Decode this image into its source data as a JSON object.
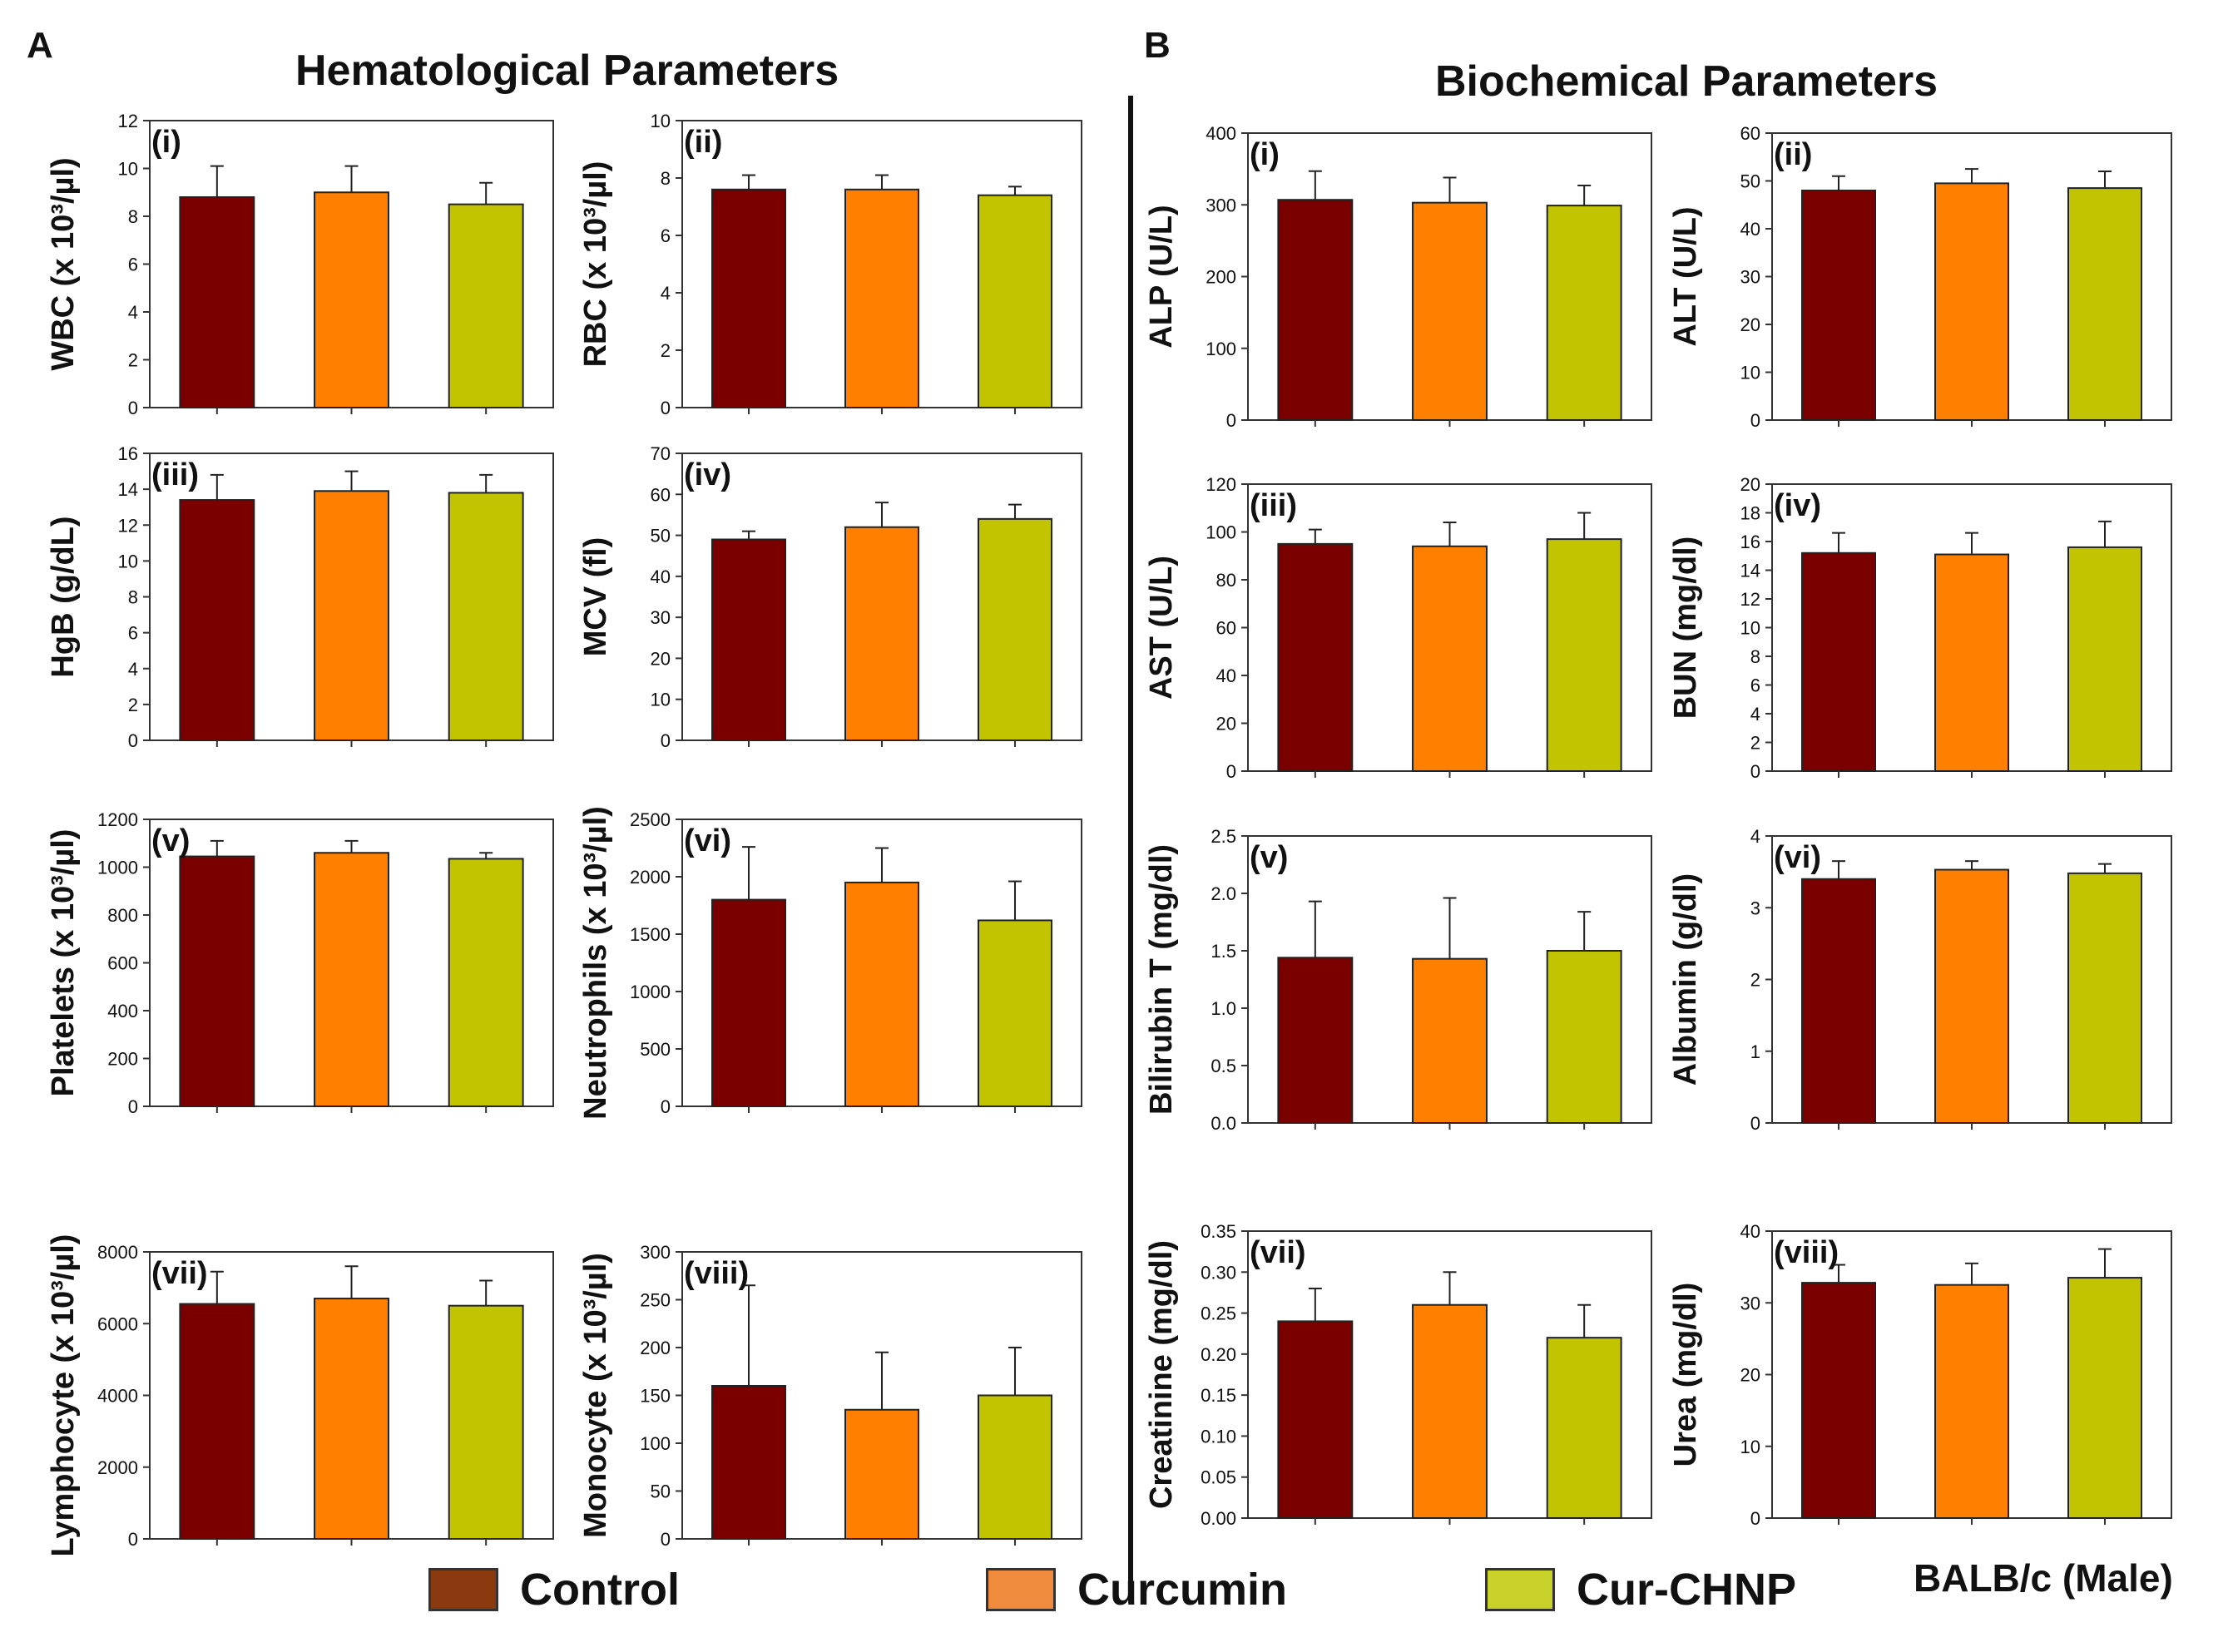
{
  "figure": {
    "panel_a_letter": "A",
    "panel_b_letter": "B",
    "hematological_title": "Hematological Parameters",
    "biochemical_title": "Biochemical Parameters",
    "strain_label": "BALB/c (Male)"
  },
  "legend": [
    {
      "label": "Control",
      "color": "#7a0000",
      "swatch_color": "#8b3a10"
    },
    {
      "label": "Curcumin",
      "color": "#ff8000",
      "swatch_color": "#f08a3c"
    },
    {
      "label": "Cur-CHNP",
      "color": "#c2c400",
      "swatch_color": "#c8d22a"
    }
  ],
  "chart_data": [
    {
      "type": "bar",
      "panel": "(i)",
      "ylabel": "WBC (x 10³/µl)",
      "ylim": [
        0,
        12
      ],
      "yticks": [
        "0",
        "2",
        "4",
        "6",
        "8",
        "10",
        "12"
      ],
      "categories": [
        "Control",
        "Curcumin",
        "Cur-CHNP"
      ],
      "values": [
        8.8,
        9.0,
        8.5
      ],
      "errors": [
        1.3,
        1.1,
        0.9
      ]
    },
    {
      "type": "bar",
      "panel": "(ii)",
      "ylabel": "RBC (x 10³/µl)",
      "ylim": [
        0,
        10
      ],
      "yticks": [
        "0",
        "2",
        "4",
        "6",
        "8",
        "10"
      ],
      "categories": [
        "Control",
        "Curcumin",
        "Cur-CHNP"
      ],
      "values": [
        7.6,
        7.6,
        7.4
      ],
      "errors": [
        0.5,
        0.5,
        0.3
      ]
    },
    {
      "type": "bar",
      "panel": "(iii)",
      "ylabel": "HgB (g/dL)",
      "ylim": [
        0,
        16
      ],
      "yticks": [
        "0",
        "2",
        "4",
        "6",
        "8",
        "10",
        "12",
        "14",
        "16"
      ],
      "categories": [
        "Control",
        "Curcumin",
        "Cur-CHNP"
      ],
      "values": [
        13.4,
        13.9,
        13.8
      ],
      "errors": [
        1.4,
        1.1,
        1.0
      ]
    },
    {
      "type": "bar",
      "panel": "(iv)",
      "ylabel": "MCV (fl)",
      "ylim": [
        0,
        70
      ],
      "yticks": [
        "0",
        "10",
        "20",
        "30",
        "40",
        "50",
        "60",
        "70"
      ],
      "categories": [
        "Control",
        "Curcumin",
        "Cur-CHNP"
      ],
      "values": [
        49,
        52,
        54
      ],
      "errors": [
        2,
        6,
        3.5
      ]
    },
    {
      "type": "bar",
      "panel": "(v)",
      "ylabel": "Platelets (x 10³/µl)",
      "ylim": [
        0,
        1200
      ],
      "yticks": [
        "0",
        "200",
        "400",
        "600",
        "800",
        "1000",
        "1200"
      ],
      "categories": [
        "Control",
        "Curcumin",
        "Cur-CHNP"
      ],
      "values": [
        1045,
        1060,
        1035
      ],
      "errors": [
        65,
        50,
        25
      ]
    },
    {
      "type": "bar",
      "panel": "(vi)",
      "ylabel": "Neutrophils (x 10³/µl)",
      "ylim": [
        0,
        2500
      ],
      "yticks": [
        "0",
        "500",
        "1000",
        "1500",
        "2000",
        "2500"
      ],
      "categories": [
        "Control",
        "Curcumin",
        "Cur-CHNP"
      ],
      "values": [
        1800,
        1950,
        1620
      ],
      "errors": [
        460,
        300,
        340
      ]
    },
    {
      "type": "bar",
      "panel": "(vii)",
      "ylabel": "Lymphocyte (x 10³/µl)",
      "ylim": [
        0,
        8000
      ],
      "yticks": [
        "0",
        "2000",
        "4000",
        "6000",
        "8000"
      ],
      "categories": [
        "Control",
        "Curcumin",
        "Cur-CHNP"
      ],
      "values": [
        6550,
        6700,
        6500
      ],
      "errors": [
        900,
        900,
        700
      ]
    },
    {
      "type": "bar",
      "panel": "(viii)",
      "ylabel": "Monocyte (x 10³/µl)",
      "ylim": [
        0,
        300
      ],
      "yticks": [
        "0",
        "50",
        "100",
        "150",
        "200",
        "250",
        "300"
      ],
      "categories": [
        "Control",
        "Curcumin",
        "Cur-CHNP"
      ],
      "values": [
        160,
        135,
        150
      ],
      "errors": [
        105,
        60,
        50
      ]
    },
    {
      "type": "bar",
      "panel": "(i)",
      "ylabel": "ALP (U/L)",
      "ylim": [
        0,
        400
      ],
      "yticks": [
        "0",
        "100",
        "200",
        "300",
        "400"
      ],
      "categories": [
        "Control",
        "Curcumin",
        "Cur-CHNP"
      ],
      "values": [
        307,
        303,
        299
      ],
      "errors": [
        40,
        35,
        28
      ]
    },
    {
      "type": "bar",
      "panel": "(ii)",
      "ylabel": "ALT (U/L)",
      "ylim": [
        0,
        60
      ],
      "yticks": [
        "0",
        "10",
        "20",
        "30",
        "40",
        "50",
        "60"
      ],
      "categories": [
        "Control",
        "Curcumin",
        "Cur-CHNP"
      ],
      "values": [
        48,
        49.5,
        48.5
      ],
      "errors": [
        3,
        3,
        3.5
      ]
    },
    {
      "type": "bar",
      "panel": "(iii)",
      "ylabel": "AST (U/L)",
      "ylim": [
        0,
        120
      ],
      "yticks": [
        "0",
        "20",
        "40",
        "60",
        "80",
        "100",
        "120"
      ],
      "categories": [
        "Control",
        "Curcumin",
        "Cur-CHNP"
      ],
      "values": [
        95,
        94,
        97
      ],
      "errors": [
        6,
        10,
        11
      ]
    },
    {
      "type": "bar",
      "panel": "(iv)",
      "ylabel": "BUN (mg/dl)",
      "ylim": [
        0,
        20
      ],
      "yticks": [
        "0",
        "2",
        "4",
        "6",
        "8",
        "10",
        "12",
        "14",
        "16",
        "18",
        "20"
      ],
      "categories": [
        "Control",
        "Curcumin",
        "Cur-CHNP"
      ],
      "values": [
        15.2,
        15.1,
        15.6
      ],
      "errors": [
        1.4,
        1.5,
        1.8
      ]
    },
    {
      "type": "bar",
      "panel": "(v)",
      "ylabel": "Bilirubin T (mg/dl)",
      "ylim": [
        0,
        2.5
      ],
      "yticks": [
        "0.0",
        "0.5",
        "1.0",
        "1.5",
        "2.0",
        "2.5"
      ],
      "categories": [
        "Control",
        "Curcumin",
        "Cur-CHNP"
      ],
      "values": [
        1.44,
        1.43,
        1.5
      ],
      "errors": [
        0.49,
        0.53,
        0.34
      ]
    },
    {
      "type": "bar",
      "panel": "(vi)",
      "ylabel": "Albumin (g/dl)",
      "ylim": [
        0,
        4
      ],
      "yticks": [
        "0",
        "1",
        "2",
        "3",
        "4"
      ],
      "categories": [
        "Control",
        "Curcumin",
        "Cur-CHNP"
      ],
      "values": [
        3.4,
        3.53,
        3.48
      ],
      "errors": [
        0.25,
        0.12,
        0.13
      ]
    },
    {
      "type": "bar",
      "panel": "(vii)",
      "ylabel": "Creatinine (mg/dl)",
      "ylim": [
        0,
        0.35
      ],
      "yticks": [
        "0.00",
        "0.05",
        "0.10",
        "0.15",
        "0.20",
        "0.25",
        "0.30",
        "0.35"
      ],
      "categories": [
        "Control",
        "Curcumin",
        "Cur-CHNP"
      ],
      "values": [
        0.24,
        0.26,
        0.22
      ],
      "errors": [
        0.04,
        0.04,
        0.04
      ]
    },
    {
      "type": "bar",
      "panel": "(viii)",
      "ylabel": "Urea (mg/dl)",
      "ylim": [
        0,
        40
      ],
      "yticks": [
        "0",
        "10",
        "20",
        "30",
        "40"
      ],
      "categories": [
        "Control",
        "Curcumin",
        "Cur-CHNP"
      ],
      "values": [
        32.8,
        32.5,
        33.5
      ],
      "errors": [
        2.5,
        3,
        4
      ]
    }
  ]
}
